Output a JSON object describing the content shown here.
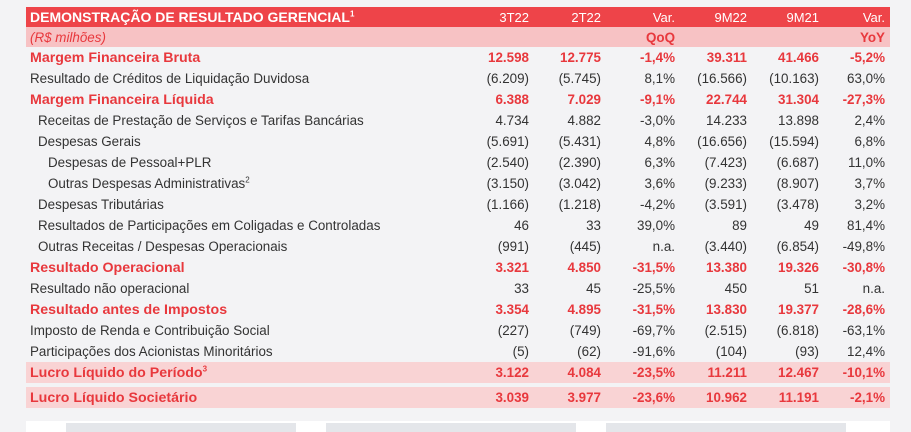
{
  "table": {
    "title": "DEMONSTRAÇÃO DE RESULTADO GERENCIAL",
    "title_sup": "1",
    "columns": [
      "3T22",
      "2T22",
      "Var.",
      "9M22",
      "9M21",
      "Var."
    ],
    "unit": "(R$ milhões)",
    "var_labels": {
      "qoq": "QoQ",
      "yoy": "YoY"
    },
    "rows": [
      {
        "label": "Margem Financeira Bruta",
        "sup": "",
        "style": "bold",
        "indent": 0,
        "values": [
          "12.598",
          "12.775",
          "-1,4%",
          "39.311",
          "41.466",
          "-5,2%"
        ]
      },
      {
        "label": "Resultado de Créditos de Liquidação Duvidosa",
        "sup": "",
        "style": "normal",
        "indent": 0,
        "values": [
          "(6.209)",
          "(5.745)",
          "8,1%",
          "(16.566)",
          "(10.163)",
          "63,0%"
        ]
      },
      {
        "label": "Margem Financeira Líquida",
        "sup": "",
        "style": "bold",
        "indent": 0,
        "values": [
          "6.388",
          "7.029",
          "-9,1%",
          "22.744",
          "31.304",
          "-27,3%"
        ]
      },
      {
        "label": "Receitas de Prestação de Serviços  e Tarifas Bancárias",
        "sup": "",
        "style": "normal",
        "indent": 1,
        "values": [
          "4.734",
          "4.882",
          "-3,0%",
          "14.233",
          "13.898",
          "2,4%"
        ]
      },
      {
        "label": "Despesas Gerais",
        "sup": "",
        "style": "normal",
        "indent": 1,
        "values": [
          "(5.691)",
          "(5.431)",
          "4,8%",
          "(16.656)",
          "(15.594)",
          "6,8%"
        ]
      },
      {
        "label": "Despesas de Pessoal+PLR",
        "sup": "",
        "style": "normal",
        "indent": 2,
        "values": [
          "(2.540)",
          "(2.390)",
          "6,3%",
          "(7.423)",
          "(6.687)",
          "11,0%"
        ]
      },
      {
        "label": "Outras Despesas Administrativas",
        "sup": "2",
        "style": "normal",
        "indent": 2,
        "values": [
          "(3.150)",
          "(3.042)",
          "3,6%",
          "(9.233)",
          "(8.907)",
          "3,7%"
        ]
      },
      {
        "label": "Despesas Tributárias",
        "sup": "",
        "style": "normal",
        "indent": 1,
        "values": [
          "(1.166)",
          "(1.218)",
          "-4,2%",
          "(3.591)",
          "(3.478)",
          "3,2%"
        ]
      },
      {
        "label": "Resultados de Participações em Coligadas e Controladas",
        "sup": "",
        "style": "normal",
        "indent": 1,
        "values": [
          "46",
          "33",
          "39,0%",
          "89",
          "49",
          "81,4%"
        ]
      },
      {
        "label": "Outras Receitas / Despesas Operacionais",
        "sup": "",
        "style": "normal",
        "indent": 1,
        "values": [
          "(991)",
          "(445)",
          "n.a.",
          "(3.440)",
          "(6.854)",
          "-49,8%"
        ]
      },
      {
        "label": "Resultado Operacional",
        "sup": "",
        "style": "bold",
        "indent": 0,
        "values": [
          "3.321",
          "4.850",
          "-31,5%",
          "13.380",
          "19.326",
          "-30,8%"
        ]
      },
      {
        "label": "Resultado não operacional",
        "sup": "",
        "style": "normal",
        "indent": 0,
        "values": [
          "33",
          "45",
          "-25,5%",
          "450",
          "51",
          "n.a."
        ]
      },
      {
        "label": "Resultado antes de Impostos",
        "sup": "",
        "style": "bold",
        "indent": 0,
        "values": [
          "3.354",
          "4.895",
          "-31,5%",
          "13.830",
          "19.377",
          "-28,6%"
        ]
      },
      {
        "label": "Imposto de Renda e Contribuição Social",
        "sup": "",
        "style": "normal",
        "indent": 0,
        "values": [
          "(227)",
          "(749)",
          "-69,7%",
          "(2.515)",
          "(6.818)",
          "-63,1%"
        ]
      },
      {
        "label": "Participações dos Acionistas Minoritários",
        "sup": "",
        "style": "normal",
        "indent": 0,
        "values": [
          "(5)",
          "(62)",
          "-91,6%",
          "(104)",
          "(93)",
          "12,4%"
        ]
      },
      {
        "label": "Lucro Líquido do Período",
        "sup": "3",
        "style": "highlight",
        "indent": 0,
        "values": [
          "3.122",
          "4.084",
          "-23,5%",
          "11.211",
          "12.467",
          "-10,1%"
        ]
      },
      {
        "label": "Lucro Líquido Societário",
        "sup": "",
        "style": "highlight",
        "indent": 0,
        "gap_before": true,
        "values": [
          "3.039",
          "3.977",
          "-23,6%",
          "10.962",
          "11.191",
          "-2,1%"
        ]
      }
    ]
  },
  "colors": {
    "header_bg": "#ee4449",
    "subheader_bg": "#f7c2c4",
    "highlight_bg": "#f9d3d4",
    "accent_text": "#e8383d"
  }
}
